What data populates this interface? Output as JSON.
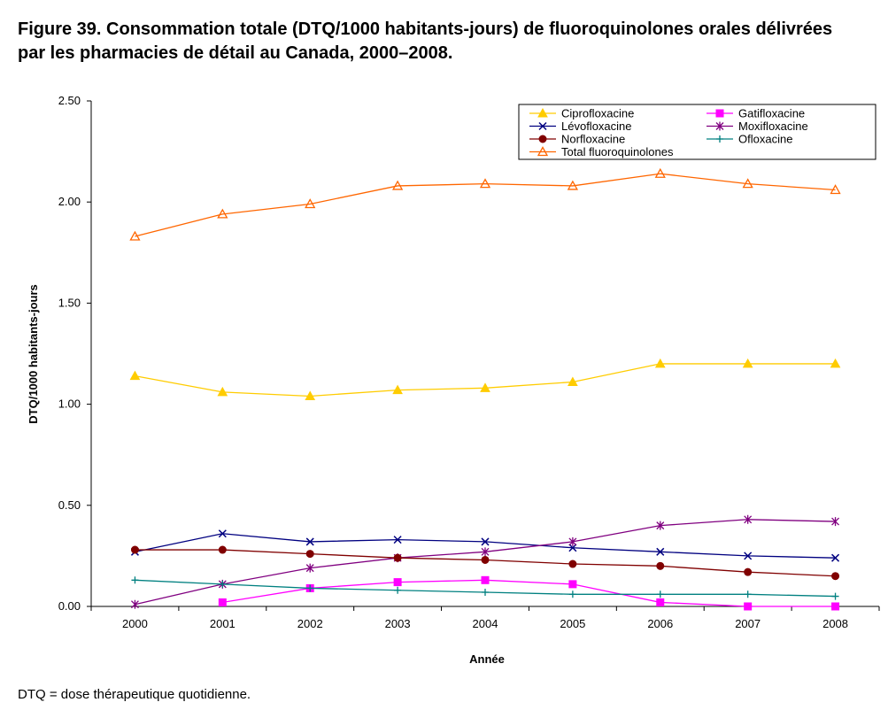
{
  "title_line1": "Figure 39. Consommation totale (DTQ/1000 habitants-jours) de fluoroquinolones orales délivrées",
  "title_line2": "par les pharmacies de détail au Canada, 2000–2008.",
  "footnote": "DTQ = dose thérapeutique quotidienne.",
  "chart_data": {
    "type": "line",
    "xlabel": "Année",
    "ylabel": "DTQ/1000 habitants-jours",
    "categories": [
      "2000",
      "2001",
      "2002",
      "2003",
      "2004",
      "2005",
      "2006",
      "2007",
      "2008"
    ],
    "ylim": [
      0,
      2.5
    ],
    "yticks": [
      "0.00",
      "0.50",
      "1.00",
      "1.50",
      "2.00",
      "2.50"
    ],
    "grid": false,
    "legend_position": "top-right",
    "series": [
      {
        "name": "Ciprofloxacine",
        "color": "#FFCC00",
        "marker": "triangle-filled",
        "values": [
          1.14,
          1.06,
          1.04,
          1.07,
          1.08,
          1.11,
          1.2,
          1.2,
          1.2
        ]
      },
      {
        "name": "Gatifloxacine",
        "color": "#FF00FF",
        "marker": "square-filled",
        "values": [
          null,
          0.02,
          0.09,
          0.12,
          0.13,
          0.11,
          0.02,
          0.0,
          0.0
        ]
      },
      {
        "name": "Lévofloxacine",
        "color": "#000080",
        "marker": "x",
        "values": [
          0.27,
          0.36,
          0.32,
          0.33,
          0.32,
          0.29,
          0.27,
          0.25,
          0.24
        ]
      },
      {
        "name": "Moxifloxacine",
        "color": "#800080",
        "marker": "star",
        "values": [
          0.01,
          0.11,
          0.19,
          0.24,
          0.27,
          0.32,
          0.4,
          0.43,
          0.42
        ]
      },
      {
        "name": "Norfloxacine",
        "color": "#800000",
        "marker": "circle-filled",
        "values": [
          0.28,
          0.28,
          0.26,
          0.24,
          0.23,
          0.21,
          0.2,
          0.17,
          0.15
        ]
      },
      {
        "name": "Ofloxacine",
        "color": "#008080",
        "marker": "plus",
        "values": [
          0.13,
          0.11,
          0.09,
          0.08,
          0.07,
          0.06,
          0.06,
          0.06,
          0.05
        ]
      },
      {
        "name": "Total fluoroquinolones",
        "color": "#FF6600",
        "marker": "triangle-open",
        "values": [
          1.83,
          1.94,
          1.99,
          2.08,
          2.09,
          2.08,
          2.14,
          2.09,
          2.06
        ]
      }
    ]
  }
}
